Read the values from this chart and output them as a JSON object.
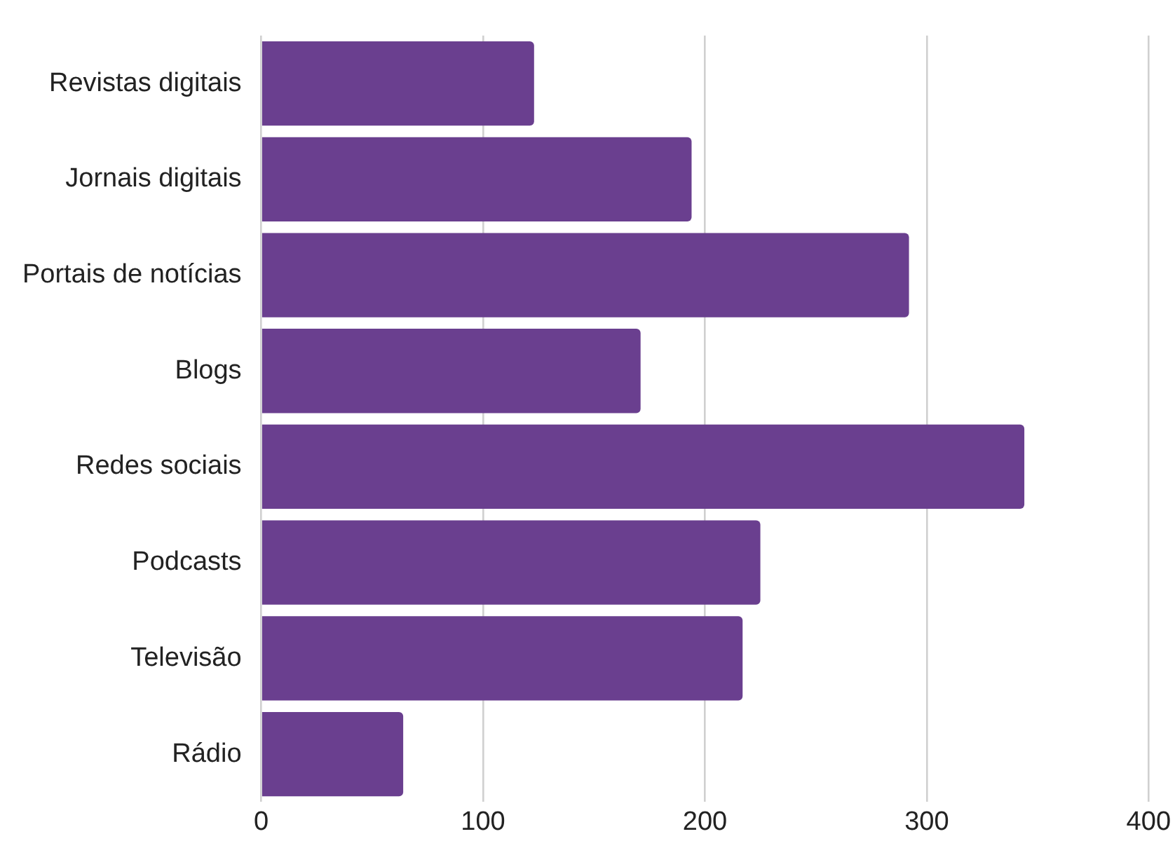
{
  "chart_data": {
    "type": "bar",
    "orientation": "horizontal",
    "categories": [
      "Revistas digitais",
      "Jornais digitais",
      "Portais de notícias",
      "Blogs",
      "Redes sociais",
      "Podcasts",
      "Televisão",
      "Rádio"
    ],
    "values": [
      123,
      194,
      292,
      171,
      344,
      225,
      217,
      64
    ],
    "color": "#6a3f8f",
    "xlim": [
      0,
      400
    ],
    "xticks": [
      0,
      100,
      200,
      300,
      400
    ],
    "grid": "x",
    "legend": false
  }
}
